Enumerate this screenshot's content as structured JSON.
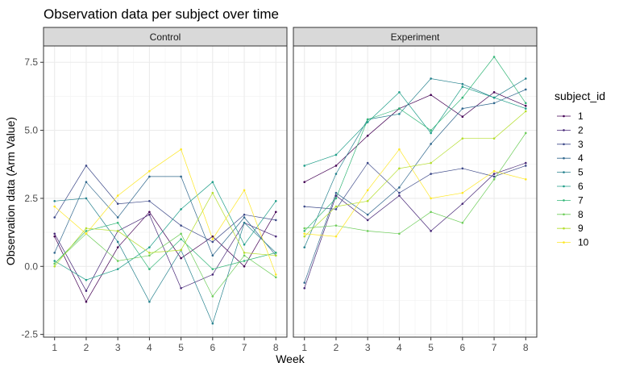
{
  "chart_data": {
    "type": "line",
    "title": "Observation data per subject over time",
    "xlabel": "Week",
    "ylabel": "Observation data (Arm Value)",
    "x": [
      1,
      2,
      3,
      4,
      5,
      6,
      7,
      8
    ],
    "xlim": [
      0.65,
      8.35
    ],
    "ylim": [
      -2.6,
      8.1
    ],
    "yticks": [
      -2.5,
      0.0,
      2.5,
      5.0,
      7.5
    ],
    "ytick_labels": [
      "-2.5",
      "0.0",
      "2.5",
      "5.0",
      "7.5"
    ],
    "grid": true,
    "legend_title": "subject_id",
    "legend_position": "right",
    "series_colors": [
      "#440154",
      "#482878",
      "#3E4A89",
      "#31688E",
      "#26828E",
      "#1F9E89",
      "#35B779",
      "#6DCD59",
      "#B4DE2C",
      "#FDE725"
    ],
    "panels": [
      {
        "name": "Control",
        "series": [
          {
            "name": "1",
            "values": [
              1.1,
              -1.3,
              0.7,
              2.0,
              0.3,
              1.1,
              0.0,
              2.0
            ]
          },
          {
            "name": "2",
            "values": [
              1.2,
              -0.9,
              1.3,
              1.9,
              -0.8,
              -0.3,
              1.6,
              1.1
            ]
          },
          {
            "name": "3",
            "values": [
              1.8,
              3.7,
              2.3,
              2.4,
              1.5,
              0.9,
              1.9,
              1.7
            ]
          },
          {
            "name": "4",
            "values": [
              0.5,
              3.1,
              1.8,
              3.3,
              3.3,
              0.4,
              1.8,
              0.4
            ]
          },
          {
            "name": "5",
            "values": [
              2.4,
              2.5,
              0.9,
              -1.3,
              0.6,
              -2.1,
              1.6,
              0.5
            ]
          },
          {
            "name": "6",
            "values": [
              0.2,
              -0.5,
              -0.1,
              0.7,
              2.1,
              3.1,
              0.8,
              2.4
            ]
          },
          {
            "name": "7",
            "values": [
              0.1,
              1.3,
              1.6,
              -0.1,
              1.0,
              -0.1,
              0.2,
              0.5
            ]
          },
          {
            "name": "8",
            "values": [
              0.1,
              1.2,
              0.2,
              0.4,
              1.2,
              -1.1,
              0.4,
              -0.4
            ]
          },
          {
            "name": "9",
            "values": [
              0.0,
              1.4,
              1.3,
              0.5,
              0.6,
              2.7,
              0.5,
              0.4
            ]
          },
          {
            "name": "10",
            "values": [
              2.2,
              1.2,
              2.6,
              3.5,
              4.3,
              1.0,
              2.8,
              -0.3
            ]
          }
        ]
      },
      {
        "name": "Experiment",
        "series": [
          {
            "name": "1",
            "values": [
              3.1,
              3.7,
              4.8,
              5.8,
              6.3,
              5.5,
              6.4,
              5.9
            ]
          },
          {
            "name": "2",
            "values": [
              -0.8,
              2.6,
              1.7,
              2.6,
              1.3,
              2.3,
              3.4,
              3.8
            ]
          },
          {
            "name": "3",
            "values": [
              2.2,
              2.1,
              3.8,
              2.7,
              3.4,
              3.6,
              3.3,
              3.7
            ]
          },
          {
            "name": "4",
            "values": [
              -0.6,
              2.7,
              1.9,
              2.9,
              4.5,
              5.8,
              6.0,
              6.5
            ]
          },
          {
            "name": "5",
            "values": [
              0.7,
              3.4,
              5.4,
              5.6,
              6.9,
              6.7,
              6.2,
              6.9
            ]
          },
          {
            "name": "6",
            "values": [
              3.7,
              4.1,
              5.3,
              6.4,
              4.9,
              6.6,
              6.2,
              5.8
            ]
          },
          {
            "name": "7",
            "values": [
              1.3,
              2.5,
              5.4,
              5.8,
              5.0,
              6.2,
              7.7,
              6.0
            ]
          },
          {
            "name": "8",
            "values": [
              1.4,
              1.5,
              1.3,
              1.2,
              2.0,
              1.6,
              3.2,
              4.9
            ]
          },
          {
            "name": "9",
            "values": [
              1.1,
              2.2,
              2.4,
              3.6,
              3.8,
              4.7,
              4.7,
              5.7
            ]
          },
          {
            "name": "10",
            "values": [
              1.2,
              1.1,
              2.8,
              4.3,
              2.5,
              2.7,
              3.5,
              3.2
            ]
          }
        ]
      }
    ]
  }
}
